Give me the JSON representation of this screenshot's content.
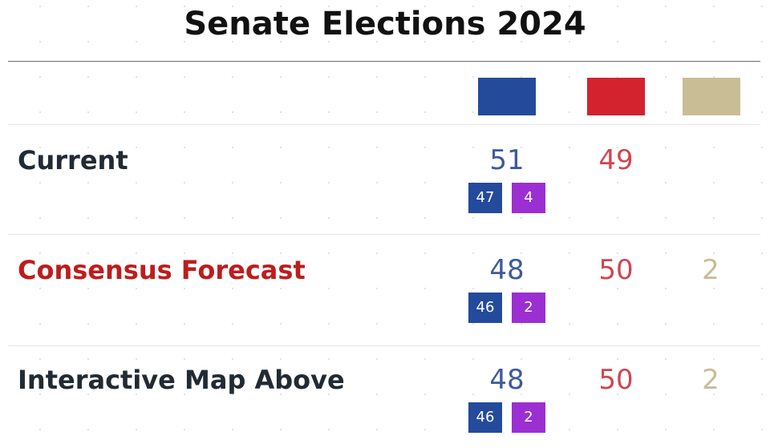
{
  "title": "Senate Elections 2024",
  "colors": {
    "democrat": "#244a9b",
    "republican": "#d2232f",
    "other": "#c9bd96",
    "independent_badge": "#9b2fd1",
    "highlight_label": "#bd1d1d",
    "dem_number": "#3d5a9c",
    "rep_number": "#d04552",
    "oth_number": "#c9bd96"
  },
  "rows": [
    {
      "label": "Current",
      "dem": "51",
      "rep": "49",
      "other": "",
      "dem_badge": "47",
      "ind_badge": "4"
    },
    {
      "label": "Consensus Forecast",
      "dem": "48",
      "rep": "50",
      "other": "2",
      "dem_badge": "46",
      "ind_badge": "2"
    },
    {
      "label": "Interactive Map Above",
      "dem": "48",
      "rep": "50",
      "other": "2",
      "dem_badge": "46",
      "ind_badge": "2"
    }
  ]
}
